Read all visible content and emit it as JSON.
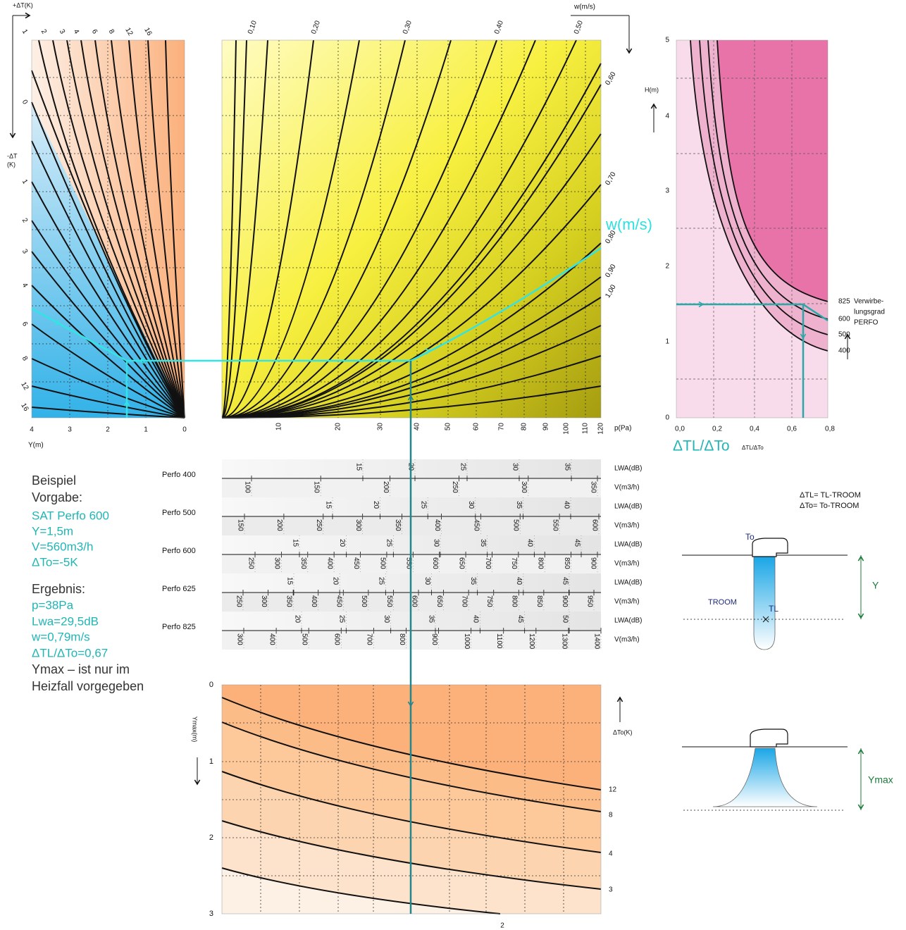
{
  "left_panel": {
    "top_axis_label": "+ΔT(K)",
    "top_ticks": [
      "1",
      "2",
      "3",
      "4",
      "6",
      "8",
      "12",
      "16"
    ],
    "side_axis_label": [
      "-ΔT",
      "(K)"
    ],
    "side_ticks": [
      "0",
      "1",
      "2",
      "3",
      "4",
      "6",
      "8",
      "12",
      "16"
    ],
    "x_ticks": [
      "4",
      "3",
      "2",
      "1",
      "0"
    ],
    "x_axis_label": "Y(m)"
  },
  "middle_panel": {
    "top_axis_label": "w(m/s)",
    "top_ticks": [
      "0,10",
      "0,20",
      "0,30",
      "0,40",
      "0,50"
    ],
    "right_ticks": [
      "0,60",
      "0,70",
      "0,80",
      "0,90",
      "1,00"
    ],
    "highlight_label": "w(m/s)",
    "x_ticks": [
      "10",
      "20",
      "30",
      "40",
      "50",
      "60",
      "70",
      "80",
      "90",
      "100",
      "110",
      "120"
    ],
    "x_axis_label": "p(Pa)"
  },
  "right_panel": {
    "y_axis_label": "H(m)",
    "y_ticks": [
      "5",
      "4",
      "3",
      "2",
      "1",
      "0"
    ],
    "x_ticks": [
      "0,0",
      "0,2",
      "0,4",
      "0,6",
      "0,8"
    ],
    "curve_labels": [
      "825",
      "600",
      "500",
      "400"
    ],
    "legend": [
      "Verwirbe-",
      "lungsgrad",
      "PERFO"
    ],
    "x_axis_label": "ΔTL/ΔTo",
    "x_axis_note": "ΔTL/ΔTo"
  },
  "table": {
    "lwa_label": "LWA(dB)",
    "v_label": "V(m3/h)",
    "rows": [
      {
        "name": "Perfo 400",
        "lwa": [
          "15",
          "20",
          "25",
          "30",
          "35"
        ],
        "v": [
          "100",
          "150",
          "200",
          "250",
          "300",
          "350"
        ]
      },
      {
        "name": "Perfo 500",
        "lwa": [
          "15",
          "20",
          "25",
          "30",
          "35",
          "40"
        ],
        "v": [
          "150",
          "200",
          "250",
          "300",
          "350",
          "400",
          "450",
          "500",
          "550",
          "600"
        ]
      },
      {
        "name": "Perfo 600",
        "lwa": [
          "15",
          "20",
          "25",
          "30",
          "35",
          "40",
          "45"
        ],
        "v": [
          "250",
          "300",
          "350",
          "400",
          "450",
          "500",
          "550",
          "600",
          "650",
          "700",
          "750",
          "800",
          "850",
          "900"
        ]
      },
      {
        "name": "Perfo 625",
        "lwa": [
          "15",
          "20",
          "25",
          "30",
          "35",
          "40",
          "45"
        ],
        "v": [
          "250",
          "300",
          "350",
          "400",
          "450",
          "500",
          "550",
          "600",
          "650",
          "700",
          "750",
          "800",
          "850",
          "900",
          "950"
        ]
      },
      {
        "name": "Perfo 825",
        "lwa": [
          "20",
          "25",
          "30",
          "35",
          "40",
          "45",
          "50"
        ],
        "v": [
          "300",
          "400",
          "500",
          "600",
          "700",
          "800",
          "900",
          "1000",
          "1100",
          "1200",
          "1300",
          "1400"
        ]
      }
    ]
  },
  "bottom_panel": {
    "y_axis_label": "Ymax(m)",
    "y_ticks": [
      "0",
      "1",
      "2",
      "3"
    ],
    "curve_axis_label": "ΔTo(K)",
    "curve_labels": [
      "12",
      "8",
      "4",
      "3"
    ],
    "x_ticks": [
      "2"
    ]
  },
  "example": {
    "heading": "Beispiel",
    "given_label": "Vorgabe:",
    "given": [
      "SAT Perfo 600",
      "Y=1,5m",
      "V=560m3/h",
      "ΔTo=-5K"
    ],
    "result_label": "Ergebnis:",
    "results": [
      "p=38Pa",
      "Lwa=29,5dB",
      "w=0,79m/s",
      "ΔTL/ΔTo=0,67"
    ],
    "note": [
      "Ymax – ist nur im",
      "Heizfall vorgegeben"
    ]
  },
  "sketches": {
    "definitions": [
      "ΔTL= TL-TROOM",
      "ΔTo= To-TROOM"
    ],
    "outlet_label": "To",
    "distance_label": "Y",
    "room_label": "TROOM",
    "local_label": "TL",
    "ymax_label": "Ymax"
  }
}
